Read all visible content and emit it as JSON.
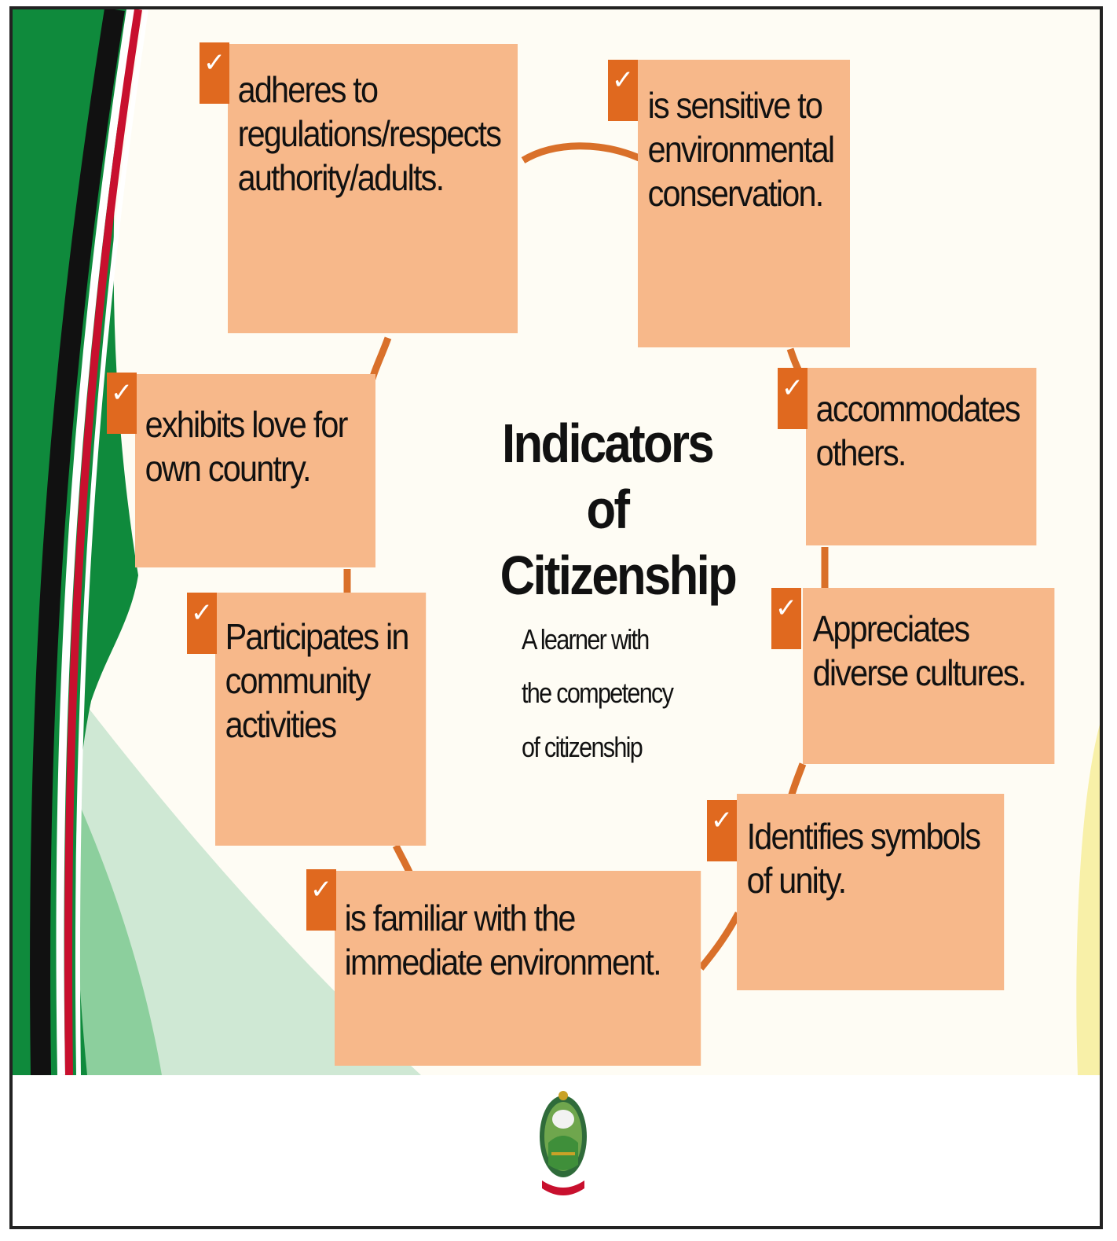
{
  "diagram": {
    "title": "Indicators of Citizenship",
    "subtitle": "A learner with the competency of citizenship",
    "check_symbol": "✓",
    "colors": {
      "box_fill": "#f7b88a",
      "check_fill": "#e0691f",
      "connector": "#d9702a",
      "flag_green": "#0f8a3c",
      "flag_red": "#c8102e",
      "flag_black": "#111111"
    },
    "indicators": [
      {
        "id": "adheres",
        "text": "adheres to regulations/respects authority/adults."
      },
      {
        "id": "sensitive",
        "text": "is sensitive to environmental conservation."
      },
      {
        "id": "accommodates",
        "text": "accommodates others."
      },
      {
        "id": "appreciates",
        "text": "Appreciates diverse cultures."
      },
      {
        "id": "identifies",
        "text": "Identifies symbols of unity."
      },
      {
        "id": "familiar",
        "text": "is familiar with the immediate environment."
      },
      {
        "id": "participates",
        "text": "Participates in community activities"
      },
      {
        "id": "exhibits",
        "text": "exhibits love for own country."
      }
    ]
  },
  "footer": {
    "logo": "coat-of-arms-icon"
  }
}
